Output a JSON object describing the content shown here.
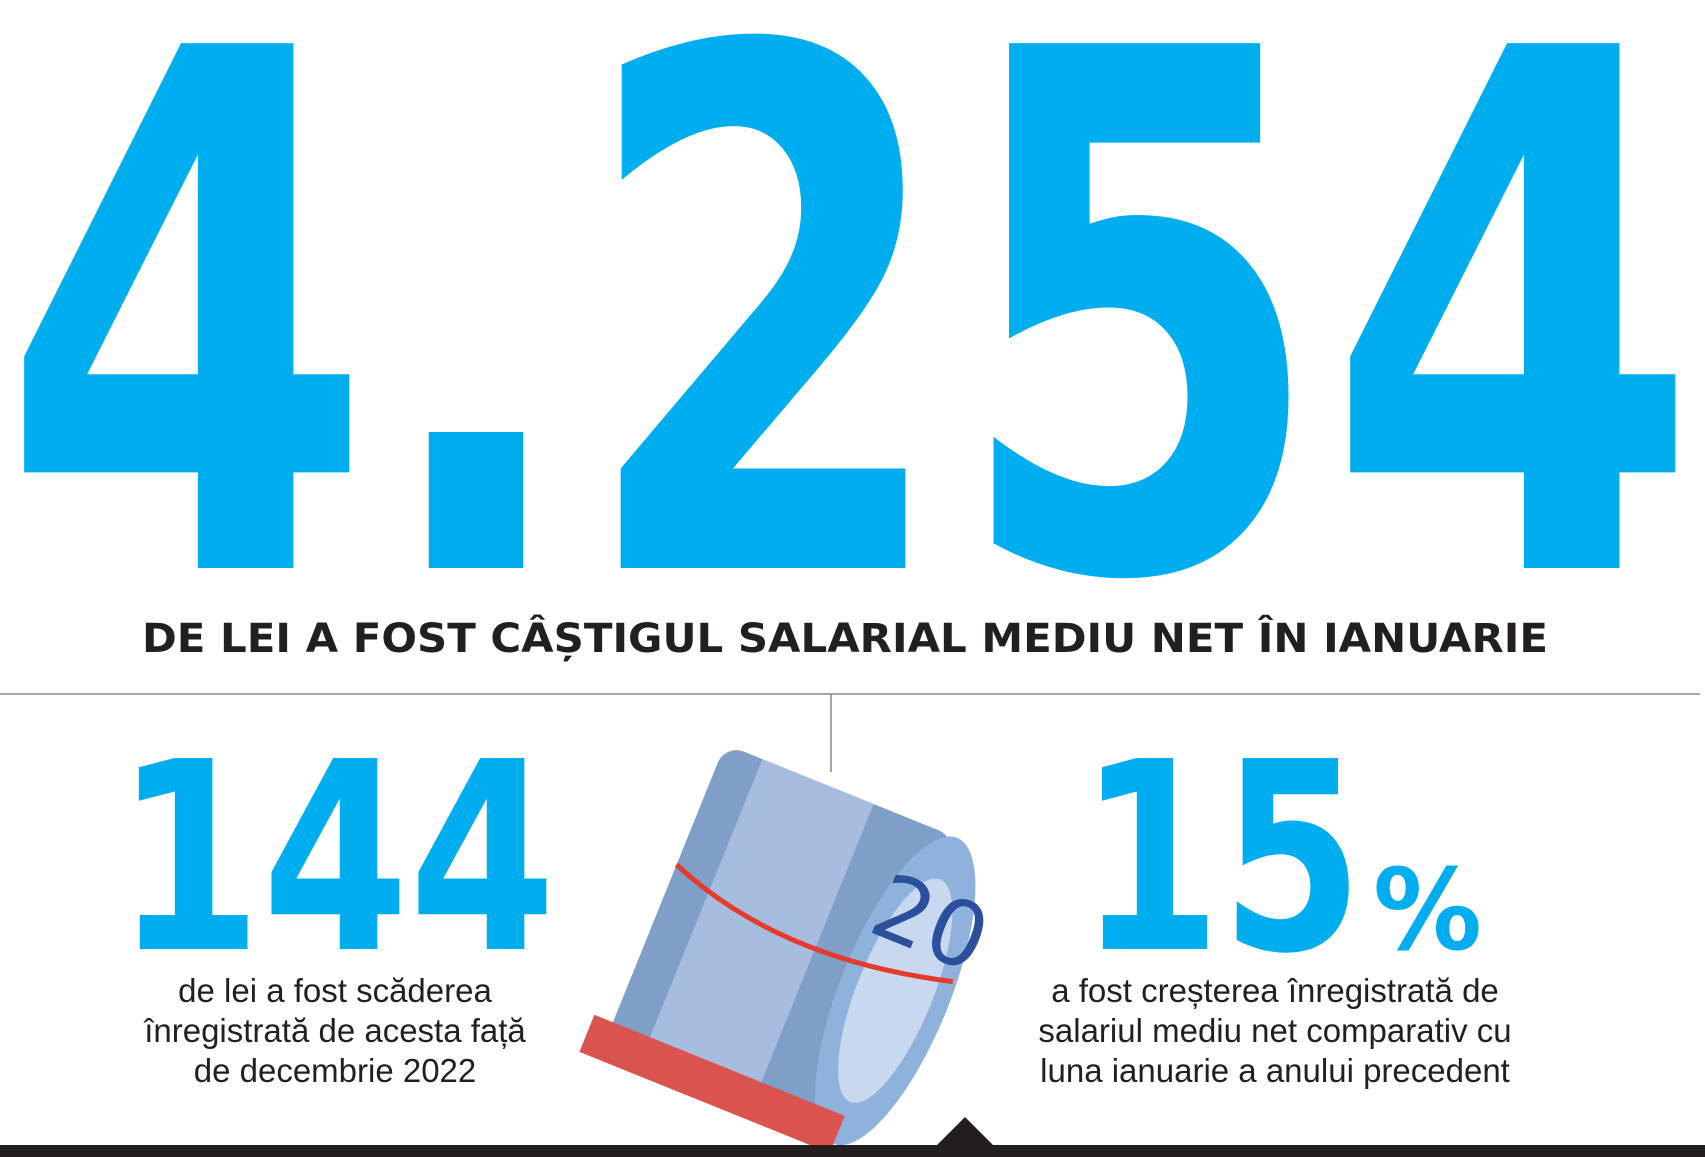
{
  "headline": {
    "number": "4.254",
    "caption": "DE LEI A FOST CÂȘTIGUL SALARIAL MEDIU NET ÎN IANUARIE"
  },
  "left_stat": {
    "number": "144",
    "lines": [
      "de lei a fost scăderea",
      "înregistrată de acesta față",
      "de decembrie 2022"
    ]
  },
  "right_stat": {
    "number": "15",
    "unit": "%",
    "lines": [
      "a fost creșterea înregistrată de",
      "salariul mediu net comparativ cu",
      "luna ianuarie a anului precedent"
    ]
  }
}
